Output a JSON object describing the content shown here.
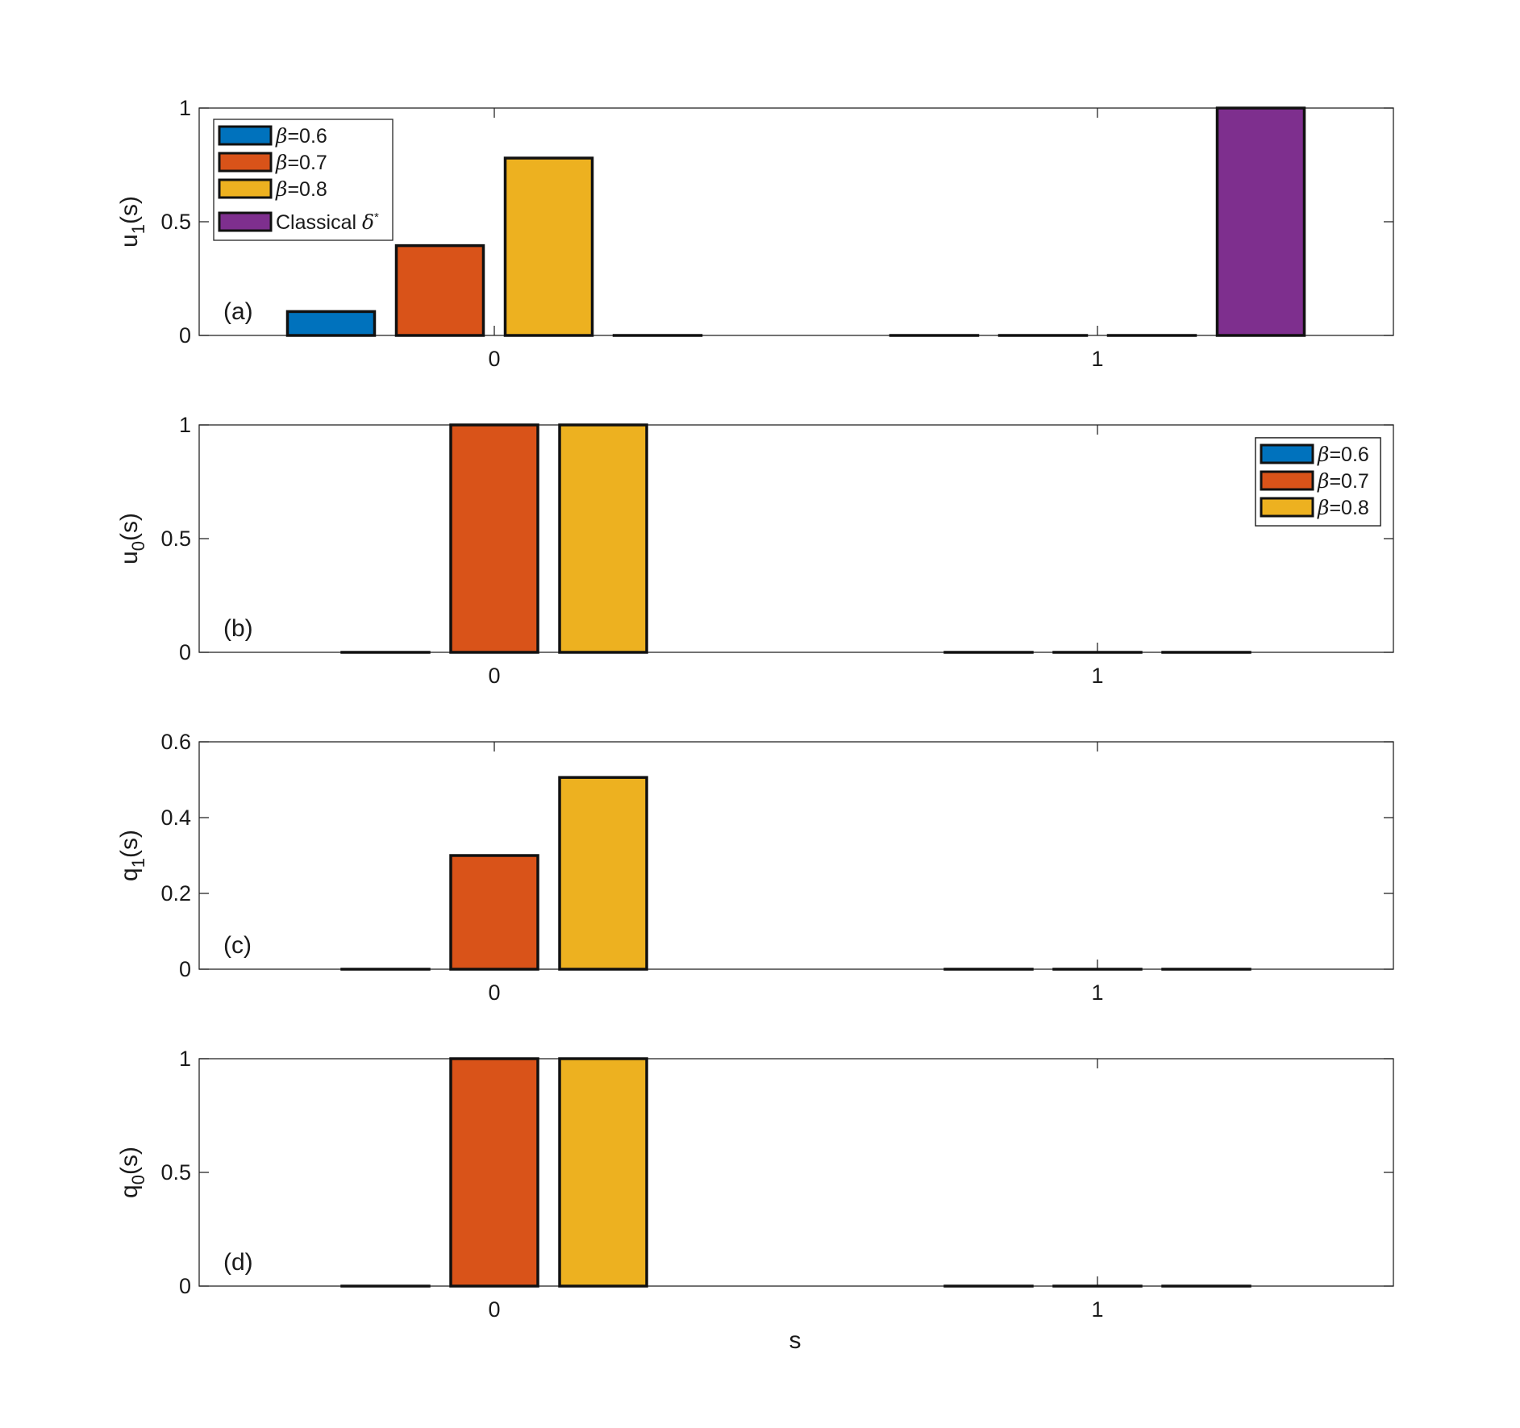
{
  "figure": {
    "xlabel": "s"
  },
  "colors": {
    "beta06": "#0072BD",
    "beta07": "#D95319",
    "beta08": "#EDB120",
    "classical": "#7E2F8E"
  },
  "chart_data": [
    {
      "type": "bar",
      "panel": "(a)",
      "ylabel_main": "u",
      "ylabel_sub": "1",
      "ylabel_tail": "(s)",
      "categories": [
        "0",
        "1"
      ],
      "ylim": [
        0,
        1
      ],
      "yticks": [
        "0",
        "0.5",
        "1"
      ],
      "legend_position": "top-left",
      "series": [
        {
          "name": "=0.6",
          "symbol": "β",
          "color_key": "beta06",
          "values": [
            0.105,
            0
          ]
        },
        {
          "name": "=0.7",
          "symbol": "β",
          "color_key": "beta07",
          "values": [
            0.395,
            0
          ]
        },
        {
          "name": "=0.8",
          "symbol": "β",
          "color_key": "beta08",
          "values": [
            0.78,
            0
          ]
        },
        {
          "name": "Classical ",
          "symbol": "δ",
          "sup": "*",
          "symbol_after": true,
          "color_key": "classical",
          "values": [
            0,
            1
          ]
        }
      ]
    },
    {
      "type": "bar",
      "panel": "(b)",
      "ylabel_main": "u",
      "ylabel_sub": "0",
      "ylabel_tail": "(s)",
      "categories": [
        "0",
        "1"
      ],
      "ylim": [
        0,
        1
      ],
      "yticks": [
        "0",
        "0.5",
        "1"
      ],
      "legend_position": "top-right",
      "series": [
        {
          "name": "=0.6",
          "symbol": "β",
          "color_key": "beta06",
          "values": [
            0,
            0
          ]
        },
        {
          "name": "=0.7",
          "symbol": "β",
          "color_key": "beta07",
          "values": [
            1,
            0
          ]
        },
        {
          "name": "=0.8",
          "symbol": "β",
          "color_key": "beta08",
          "values": [
            1,
            0
          ]
        }
      ]
    },
    {
      "type": "bar",
      "panel": "(c)",
      "ylabel_main": "q",
      "ylabel_sub": "1",
      "ylabel_tail": "(s)",
      "categories": [
        "0",
        "1"
      ],
      "ylim": [
        0,
        0.6
      ],
      "yticks": [
        "0",
        "0.2",
        "0.4",
        "0.6"
      ],
      "legend_position": "top-right",
      "series": [
        {
          "name": "=0.6",
          "symbol": "β",
          "color_key": "beta06",
          "values": [
            0,
            0
          ]
        },
        {
          "name": "=0.7",
          "symbol": "β",
          "color_key": "beta07",
          "values": [
            0.3,
            0
          ]
        },
        {
          "name": "=0.8",
          "symbol": "β",
          "color_key": "beta08",
          "values": [
            0.506,
            0
          ]
        }
      ]
    },
    {
      "type": "bar",
      "panel": "(d)",
      "ylabel_main": "q",
      "ylabel_sub": "0",
      "ylabel_tail": "(s)",
      "categories": [
        "0",
        "1"
      ],
      "ylim": [
        0,
        1
      ],
      "yticks": [
        "0",
        "0.5",
        "1"
      ],
      "legend_position": "top-right",
      "series": [
        {
          "name": "=0.6",
          "symbol": "β",
          "color_key": "beta06",
          "values": [
            0,
            0
          ]
        },
        {
          "name": "=0.7",
          "symbol": "β",
          "color_key": "beta07",
          "values": [
            1,
            0
          ]
        },
        {
          "name": "=0.8",
          "symbol": "β",
          "color_key": "beta08",
          "values": [
            1,
            0
          ]
        }
      ]
    }
  ]
}
